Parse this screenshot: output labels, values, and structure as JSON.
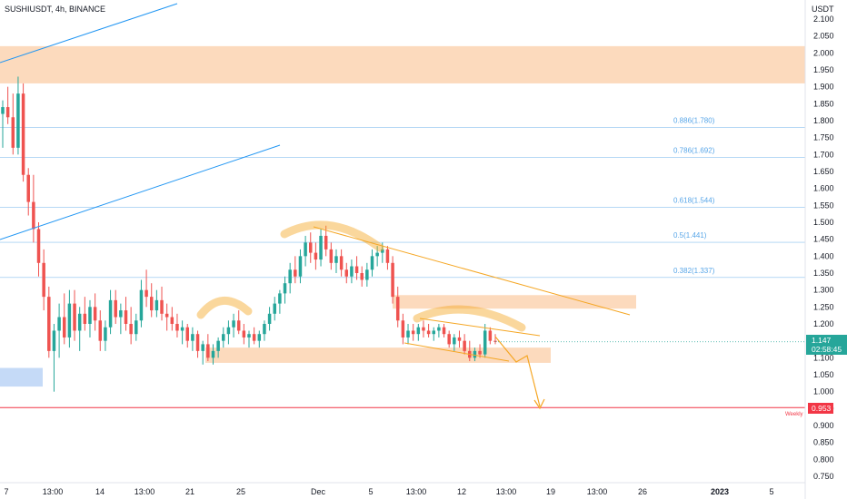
{
  "header": {
    "symbol_line": "SUSHIUSDT, 4h, BINANCE",
    "axis_unit": "USDT"
  },
  "colors": {
    "up": "#26a69a",
    "down": "#ef5350",
    "zone": "#fbd1ad",
    "blue_zone": "#bbd3f6",
    "trendline": "#2196f3",
    "fib": "#58a6e8",
    "orange": "#f5a623",
    "weekly": "#f23645",
    "price_badge": "#26a69a"
  },
  "price_badge": {
    "price": "1.147",
    "timer": "02:58:45"
  },
  "weekly_level": {
    "label": "Weekly",
    "price": "0.953"
  },
  "chart_data": {
    "type": "candlestick",
    "title": "SUSHIUSDT, 4h, BINANCE",
    "y_unit": "USDT",
    "ylim": [
      0.725,
      2.125
    ],
    "y_ticks": [
      "2.100",
      "2.050",
      "2.000",
      "1.950",
      "1.900",
      "1.850",
      "1.800",
      "1.750",
      "1.700",
      "1.650",
      "1.600",
      "1.550",
      "1.500",
      "1.450",
      "1.400",
      "1.350",
      "1.300",
      "1.250",
      "1.200",
      "1.150",
      "1.100",
      "1.050",
      "1.000",
      "0.950",
      "0.900",
      "0.850",
      "0.800",
      "0.750"
    ],
    "x_ticks": [
      {
        "label": "7",
        "bold": false
      },
      {
        "label": "13:00",
        "bold": false
      },
      {
        "label": "14",
        "bold": false
      },
      {
        "label": "13:00",
        "bold": false
      },
      {
        "label": "21",
        "bold": false
      },
      {
        "label": "25",
        "bold": false
      },
      {
        "label": "Dec",
        "bold": false
      },
      {
        "label": "5",
        "bold": false
      },
      {
        "label": "13:00",
        "bold": false
      },
      {
        "label": "12",
        "bold": false
      },
      {
        "label": "13:00",
        "bold": false
      },
      {
        "label": "19",
        "bold": false
      },
      {
        "label": "13:00",
        "bold": false
      },
      {
        "label": "26",
        "bold": false
      },
      {
        "label": "2023",
        "bold": true
      },
      {
        "label": "5",
        "bold": false
      }
    ],
    "fib_levels": [
      {
        "label": "0.886(1.780)",
        "price": 1.78
      },
      {
        "label": "0.786(1.692)",
        "price": 1.692
      },
      {
        "label": "0.618(1.544)",
        "price": 1.544
      },
      {
        "label": "0.5(1.441)",
        "price": 1.441
      },
      {
        "label": "0.382(1.337)",
        "price": 1.337
      }
    ],
    "zones": [
      {
        "name": "supply-zone-top",
        "price_high": 2.02,
        "price_low": 1.91,
        "color": "orange"
      },
      {
        "name": "resistance-zone",
        "price_high": 1.285,
        "price_low": 1.245,
        "color": "orange"
      },
      {
        "name": "support-zone",
        "price_high": 1.13,
        "price_low": 1.085,
        "color": "orange"
      },
      {
        "name": "demand-zone-left",
        "price_high": 1.07,
        "price_low": 1.015,
        "color": "blue"
      }
    ],
    "candles": [
      [
        1.82,
        1.86,
        1.72,
        1.84
      ],
      [
        1.84,
        1.9,
        1.79,
        1.81
      ],
      [
        1.81,
        1.88,
        1.7,
        1.72
      ],
      [
        1.72,
        1.93,
        1.7,
        1.88
      ],
      [
        1.88,
        1.91,
        1.62,
        1.64
      ],
      [
        1.64,
        1.66,
        1.52,
        1.56
      ],
      [
        1.56,
        1.64,
        1.44,
        1.48
      ],
      [
        1.48,
        1.5,
        1.34,
        1.38
      ],
      [
        1.38,
        1.42,
        1.24,
        1.28
      ],
      [
        1.28,
        1.31,
        1.1,
        1.12
      ],
      [
        1.12,
        1.2,
        1.0,
        1.18
      ],
      [
        1.18,
        1.26,
        1.1,
        1.22
      ],
      [
        1.22,
        1.29,
        1.14,
        1.16
      ],
      [
        1.16,
        1.3,
        1.13,
        1.26
      ],
      [
        1.26,
        1.3,
        1.15,
        1.18
      ],
      [
        1.18,
        1.25,
        1.12,
        1.23
      ],
      [
        1.23,
        1.28,
        1.18,
        1.2
      ],
      [
        1.2,
        1.27,
        1.16,
        1.25
      ],
      [
        1.25,
        1.29,
        1.18,
        1.21
      ],
      [
        1.21,
        1.24,
        1.12,
        1.15
      ],
      [
        1.15,
        1.21,
        1.12,
        1.19
      ],
      [
        1.19,
        1.3,
        1.17,
        1.27
      ],
      [
        1.27,
        1.3,
        1.2,
        1.22
      ],
      [
        1.22,
        1.26,
        1.17,
        1.24
      ],
      [
        1.24,
        1.28,
        1.18,
        1.2
      ],
      [
        1.2,
        1.25,
        1.14,
        1.17
      ],
      [
        1.17,
        1.23,
        1.15,
        1.21
      ],
      [
        1.21,
        1.33,
        1.19,
        1.3
      ],
      [
        1.3,
        1.36,
        1.25,
        1.28
      ],
      [
        1.28,
        1.32,
        1.22,
        1.24
      ],
      [
        1.24,
        1.3,
        1.22,
        1.27
      ],
      [
        1.27,
        1.31,
        1.21,
        1.23
      ],
      [
        1.23,
        1.26,
        1.18,
        1.22
      ],
      [
        1.22,
        1.25,
        1.18,
        1.2
      ],
      [
        1.2,
        1.23,
        1.16,
        1.18
      ],
      [
        1.18,
        1.21,
        1.14,
        1.19
      ],
      [
        1.19,
        1.2,
        1.13,
        1.15
      ],
      [
        1.15,
        1.19,
        1.12,
        1.17
      ],
      [
        1.17,
        1.18,
        1.1,
        1.12
      ],
      [
        1.12,
        1.15,
        1.08,
        1.14
      ],
      [
        1.14,
        1.17,
        1.09,
        1.1
      ],
      [
        1.1,
        1.14,
        1.08,
        1.12
      ],
      [
        1.12,
        1.16,
        1.1,
        1.15
      ],
      [
        1.15,
        1.19,
        1.13,
        1.17
      ],
      [
        1.17,
        1.21,
        1.14,
        1.19
      ],
      [
        1.19,
        1.23,
        1.16,
        1.21
      ],
      [
        1.21,
        1.24,
        1.17,
        1.18
      ],
      [
        1.18,
        1.2,
        1.14,
        1.16
      ],
      [
        1.16,
        1.18,
        1.13,
        1.17
      ],
      [
        1.17,
        1.19,
        1.14,
        1.15
      ],
      [
        1.15,
        1.18,
        1.13,
        1.17
      ],
      [
        1.17,
        1.21,
        1.15,
        1.2
      ],
      [
        1.2,
        1.25,
        1.18,
        1.23
      ],
      [
        1.23,
        1.28,
        1.21,
        1.26
      ],
      [
        1.26,
        1.3,
        1.23,
        1.29
      ],
      [
        1.29,
        1.34,
        1.26,
        1.32
      ],
      [
        1.32,
        1.38,
        1.29,
        1.36
      ],
      [
        1.36,
        1.4,
        1.32,
        1.34
      ],
      [
        1.34,
        1.42,
        1.32,
        1.4
      ],
      [
        1.4,
        1.46,
        1.37,
        1.44
      ],
      [
        1.44,
        1.47,
        1.38,
        1.41
      ],
      [
        1.41,
        1.44,
        1.36,
        1.39
      ],
      [
        1.39,
        1.48,
        1.37,
        1.46
      ],
      [
        1.46,
        1.49,
        1.4,
        1.42
      ],
      [
        1.42,
        1.44,
        1.36,
        1.38
      ],
      [
        1.38,
        1.42,
        1.35,
        1.4
      ],
      [
        1.4,
        1.42,
        1.34,
        1.36
      ],
      [
        1.36,
        1.38,
        1.32,
        1.34
      ],
      [
        1.34,
        1.39,
        1.32,
        1.37
      ],
      [
        1.37,
        1.4,
        1.33,
        1.35
      ],
      [
        1.35,
        1.37,
        1.31,
        1.33
      ],
      [
        1.33,
        1.38,
        1.31,
        1.36
      ],
      [
        1.36,
        1.42,
        1.34,
        1.4
      ],
      [
        1.4,
        1.43,
        1.37,
        1.41
      ],
      [
        1.41,
        1.44,
        1.38,
        1.42
      ],
      [
        1.42,
        1.43,
        1.36,
        1.38
      ],
      [
        1.38,
        1.4,
        1.26,
        1.28
      ],
      [
        1.28,
        1.31,
        1.19,
        1.21
      ],
      [
        1.21,
        1.23,
        1.14,
        1.16
      ],
      [
        1.16,
        1.2,
        1.14,
        1.18
      ],
      [
        1.18,
        1.2,
        1.15,
        1.17
      ],
      [
        1.17,
        1.2,
        1.15,
        1.19
      ],
      [
        1.19,
        1.21,
        1.16,
        1.18
      ],
      [
        1.18,
        1.2,
        1.16,
        1.17
      ],
      [
        1.17,
        1.19,
        1.15,
        1.18
      ],
      [
        1.18,
        1.2,
        1.16,
        1.19
      ],
      [
        1.19,
        1.2,
        1.16,
        1.17
      ],
      [
        1.17,
        1.18,
        1.13,
        1.14
      ],
      [
        1.14,
        1.17,
        1.12,
        1.16
      ],
      [
        1.16,
        1.18,
        1.13,
        1.15
      ],
      [
        1.15,
        1.17,
        1.11,
        1.12
      ],
      [
        1.12,
        1.15,
        1.09,
        1.1
      ],
      [
        1.1,
        1.13,
        1.09,
        1.12
      ],
      [
        1.12,
        1.14,
        1.1,
        1.11
      ],
      [
        1.11,
        1.2,
        1.1,
        1.18
      ],
      [
        1.18,
        1.19,
        1.14,
        1.15
      ],
      [
        1.15,
        1.17,
        1.14,
        1.147
      ]
    ],
    "orange_annotations": [
      "curve-left-shoulder",
      "curve-head",
      "curve-right-shoulder",
      "descending-trendline",
      "projection-arrow-to-weekly"
    ]
  }
}
